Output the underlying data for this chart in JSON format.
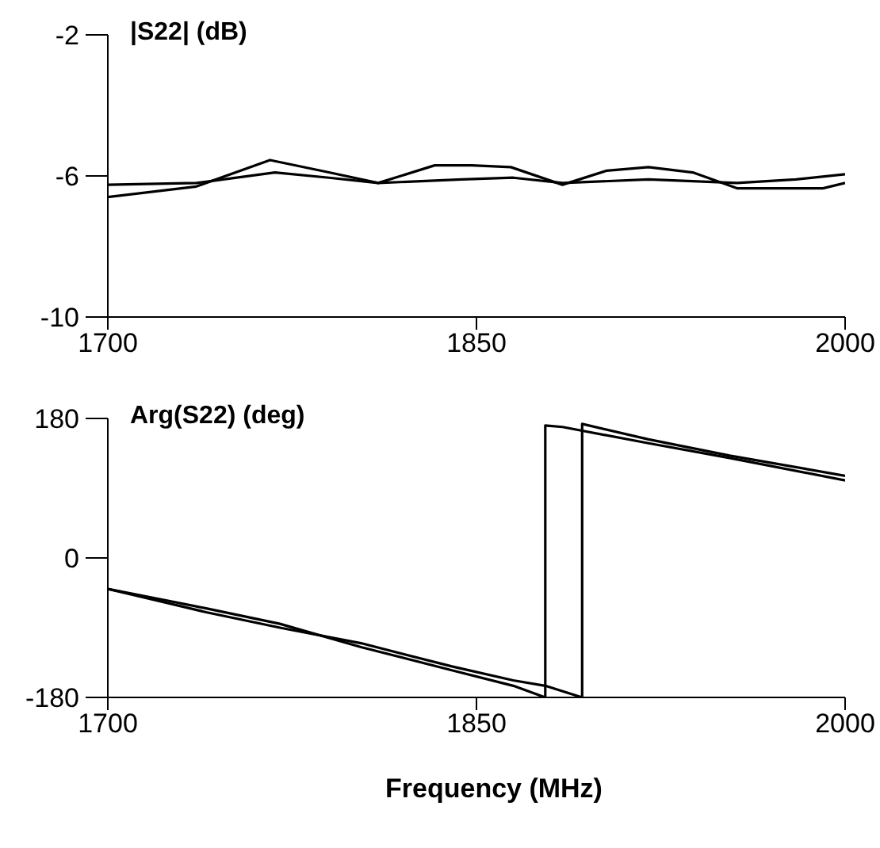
{
  "chart_data": [
    {
      "type": "line",
      "ylabel": "|S22| (dB)",
      "xlim": [
        1700,
        2000
      ],
      "xticks": [
        1700,
        1850,
        2000
      ],
      "ylim": [
        -10,
        -2
      ],
      "yticks": [
        -10,
        -6,
        -2
      ],
      "grid": false,
      "legend": false,
      "marker": "none",
      "line_style": "solid",
      "series": [
        {
          "color": "#000000",
          "x": [
            1700,
            1736,
            1766,
            1790,
            1810,
            1833,
            1848,
            1864,
            1885,
            1903,
            1920,
            1938,
            1956,
            1975,
            1991,
            2000
          ],
          "values": [
            -6.6,
            -6.3,
            -5.55,
            -5.9,
            -6.2,
            -5.7,
            -5.7,
            -5.75,
            -6.25,
            -5.85,
            -5.75,
            -5.9,
            -6.35,
            -6.35,
            -6.35,
            -6.2
          ]
        },
        {
          "color": "#000000",
          "x": [
            1700,
            1736,
            1768,
            1790,
            1810,
            1844,
            1865,
            1885,
            1920,
            1956,
            1980,
            2000
          ],
          "values": [
            -6.25,
            -6.2,
            -5.9,
            -6.05,
            -6.2,
            -6.1,
            -6.05,
            -6.2,
            -6.1,
            -6.2,
            -6.1,
            -5.95
          ]
        }
      ]
    },
    {
      "type": "line",
      "ylabel": "Arg(S22) (deg)",
      "xlabel": "Frequency (MHz)",
      "xlim": [
        1700,
        2000
      ],
      "xticks": [
        1700,
        1850,
        2000
      ],
      "ylim": [
        -180,
        180
      ],
      "yticks": [
        -180,
        0,
        180
      ],
      "grid": false,
      "legend": false,
      "marker": "none",
      "line_style": "solid",
      "series": [
        {
          "color": "#000000",
          "x": [
            1700,
            1740,
            1770,
            1803,
            1840,
            1865,
            1878,
            1878,
            1885,
            1920,
            1953,
            2000
          ],
          "values": [
            -40,
            -65,
            -85,
            -115,
            -145,
            -165,
            -180,
            171,
            169,
            148,
            129,
            100
          ]
        },
        {
          "color": "#000000",
          "x": [
            1700,
            1740,
            1770,
            1803,
            1840,
            1865,
            1878,
            1893,
            1893,
            1920,
            1953,
            2000
          ],
          "values": [
            -40,
            -70,
            -90,
            -110,
            -140,
            -158,
            -165,
            -180,
            173,
            153,
            132,
            106
          ]
        }
      ]
    }
  ]
}
